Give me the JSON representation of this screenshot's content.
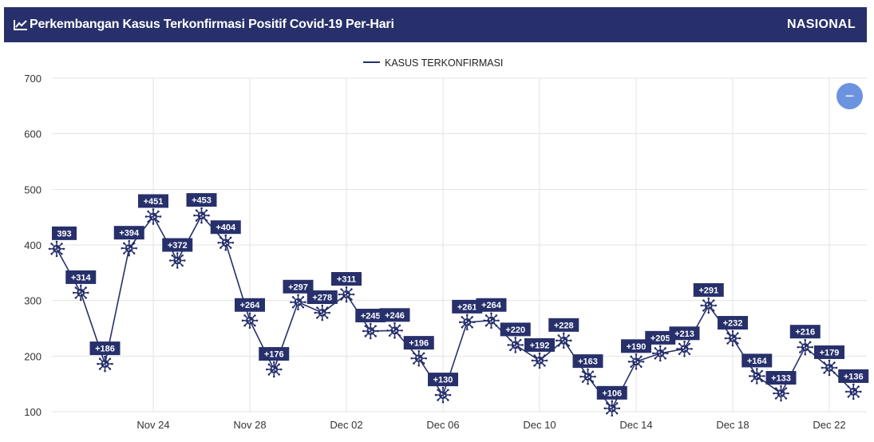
{
  "header": {
    "title": "Perkembangan Kasus Terkonfirmasi Positif Covid-19 Per-Hari",
    "region": "NASIONAL",
    "icon": "line-chart-icon"
  },
  "zoom_button": {
    "symbol": "−",
    "icon": "zoom-out-icon"
  },
  "colors": {
    "header_bg": "#27306b",
    "series": "#27306b",
    "zoom_button": "#6b93e0"
  },
  "chart_data": {
    "type": "line",
    "title": "",
    "xlabel": "",
    "ylabel": "",
    "ylim": [
      100,
      700
    ],
    "yticks": [
      100,
      200,
      300,
      400,
      500,
      600,
      700
    ],
    "xticks": [
      "Nov 24",
      "Nov 28",
      "Dec 02",
      "Dec 06",
      "Dec 10",
      "Dec 14",
      "Dec 18",
      "Dec 22"
    ],
    "grid": true,
    "legend": "top-center",
    "marker": "virus-icon",
    "series": [
      {
        "name": "KASUS TERKONFIRMASI",
        "color": "#27306b",
        "x": [
          "Nov 20",
          "Nov 21",
          "Nov 22",
          "Nov 23",
          "Nov 24",
          "Nov 25",
          "Nov 26",
          "Nov 27",
          "Nov 28",
          "Nov 29",
          "Nov 30",
          "Dec 01",
          "Dec 02",
          "Dec 03",
          "Dec 04",
          "Dec 05",
          "Dec 06",
          "Dec 07",
          "Dec 08",
          "Dec 09",
          "Dec 10",
          "Dec 11",
          "Dec 12",
          "Dec 13",
          "Dec 14",
          "Dec 15",
          "Dec 16",
          "Dec 17",
          "Dec 18",
          "Dec 19",
          "Dec 20",
          "Dec 21",
          "Dec 22",
          "Dec 23"
        ],
        "values": [
          393,
          314,
          186,
          394,
          451,
          372,
          453,
          404,
          264,
          176,
          297,
          278,
          311,
          245,
          246,
          196,
          130,
          261,
          264,
          220,
          192,
          228,
          163,
          106,
          190,
          205,
          213,
          291,
          232,
          164,
          133,
          216,
          179,
          136
        ],
        "labels": [
          "393",
          "+314",
          "+186",
          "+394",
          "+451",
          "+372",
          "+453",
          "+404",
          "+264",
          "+176",
          "+297",
          "+278",
          "+311",
          "+245",
          "+246",
          "+196",
          "+130",
          "+261",
          "+264",
          "+220",
          "+192",
          "+228",
          "+163",
          "+106",
          "+190",
          "+205",
          "+213",
          "+291",
          "+232",
          "+164",
          "+133",
          "+216",
          "+179",
          "+136"
        ]
      }
    ]
  }
}
